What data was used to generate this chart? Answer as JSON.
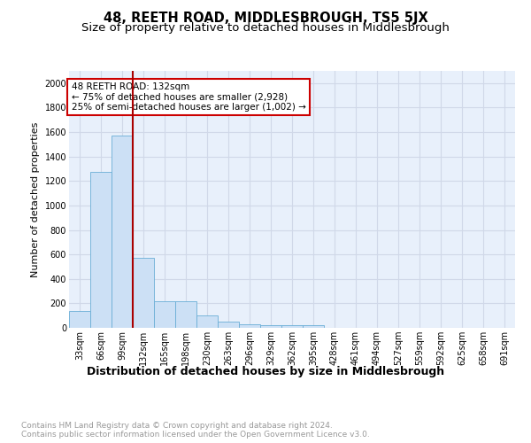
{
  "title": "48, REETH ROAD, MIDDLESBROUGH, TS5 5JX",
  "subtitle": "Size of property relative to detached houses in Middlesbrough",
  "xlabel": "Distribution of detached houses by size in Middlesbrough",
  "ylabel": "Number of detached properties",
  "categories": [
    "33sqm",
    "66sqm",
    "99sqm",
    "132sqm",
    "165sqm",
    "198sqm",
    "230sqm",
    "263sqm",
    "296sqm",
    "329sqm",
    "362sqm",
    "395sqm",
    "428sqm",
    "461sqm",
    "494sqm",
    "527sqm",
    "559sqm",
    "592sqm",
    "625sqm",
    "658sqm",
    "691sqm"
  ],
  "values": [
    135,
    1275,
    1575,
    570,
    215,
    215,
    100,
    50,
    30,
    20,
    20,
    20,
    0,
    0,
    0,
    0,
    0,
    0,
    0,
    0,
    0
  ],
  "bar_color": "#cce0f5",
  "bar_edge_color": "#6aaed6",
  "red_line_color": "#aa0000",
  "annotation_text": "48 REETH ROAD: 132sqm\n← 75% of detached houses are smaller (2,928)\n25% of semi-detached houses are larger (1,002) →",
  "annotation_box_color": "#ffffff",
  "annotation_box_edge": "#cc0000",
  "ylim": [
    0,
    2100
  ],
  "yticks": [
    0,
    200,
    400,
    600,
    800,
    1000,
    1200,
    1400,
    1600,
    1800,
    2000
  ],
  "background_color": "#e8f0fb",
  "grid_color": "#d0d8e8",
  "footer_text": "Contains HM Land Registry data © Crown copyright and database right 2024.\nContains public sector information licensed under the Open Government Licence v3.0.",
  "title_fontsize": 10.5,
  "subtitle_fontsize": 9.5,
  "xlabel_fontsize": 9,
  "ylabel_fontsize": 8,
  "tick_fontsize": 7,
  "footer_fontsize": 6.5
}
